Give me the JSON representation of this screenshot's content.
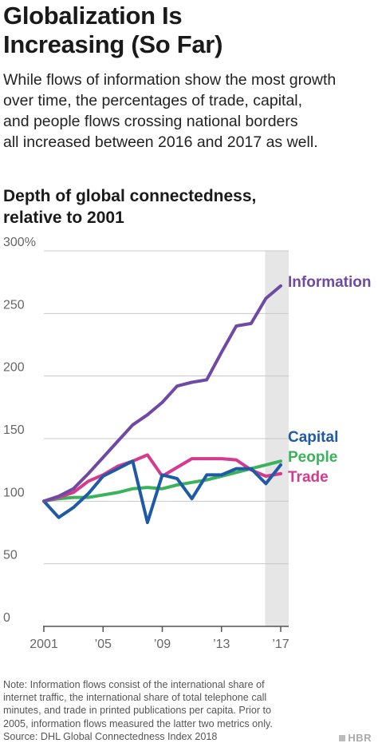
{
  "title_lines": [
    "Globalization Is",
    "Increasing (So Far)"
  ],
  "subtitle_lines": [
    "While flows of information show the most growth",
    "over time, the percentages of trade, capital,",
    "and people flows crossing national borders",
    "all increased between 2016 and 2017 as well."
  ],
  "chart_title_lines": [
    "Depth of global connectedness,",
    "relative to 2001"
  ],
  "note_lines": [
    "Note: Information flows consist of the international share of",
    "internet traffic, the international share of total telephone call",
    "minutes, and trade in printed publications per capita. Prior to",
    "2005, information flows measured the latter two metrics only.",
    "Source: DHL Global Connectedness Index 2018"
  ],
  "brand": "HBR",
  "colors": {
    "Information": "#6f4aa5",
    "Capital": "#1f5aa6",
    "People": "#3ab35a",
    "Trade": "#d63a8c",
    "highlight": "#e6e6e6",
    "grid": "#c8c8c8",
    "axis": "#555555"
  },
  "chart_data": {
    "type": "line",
    "x": [
      2001,
      2002,
      2003,
      2004,
      2005,
      2006,
      2007,
      2008,
      2009,
      2010,
      2011,
      2012,
      2013,
      2014,
      2015,
      2016,
      2017
    ],
    "x_tick_values": [
      2001,
      2005,
      2009,
      2013,
      2017
    ],
    "x_tick_labels": [
      "2001",
      "’05",
      "’09",
      "’13",
      "’17"
    ],
    "y_tick_values": [
      0,
      50,
      100,
      150,
      200,
      250,
      300
    ],
    "y_tick_labels": [
      "0",
      "50",
      "100",
      "150",
      "200",
      "250",
      "300%"
    ],
    "ylim": [
      0,
      300
    ],
    "xlim": [
      2001,
      2017
    ],
    "highlight_range": [
      2016,
      2017
    ],
    "series": [
      {
        "name": "Information",
        "values": [
          100,
          104,
          110,
          122,
          135,
          148,
          161,
          169,
          179,
          192,
          195,
          197,
          219,
          240,
          242,
          262,
          272
        ]
      },
      {
        "name": "Capital",
        "values": [
          100,
          87,
          95,
          106,
          120,
          126,
          132,
          83,
          121,
          118,
          102,
          121,
          121,
          126,
          126,
          114,
          129
        ]
      },
      {
        "name": "People",
        "values": [
          100,
          102,
          103,
          103,
          105,
          107,
          110,
          111,
          110,
          113,
          115,
          117,
          120,
          123,
          126,
          129,
          132
        ]
      },
      {
        "name": "Trade",
        "values": [
          100,
          103,
          107,
          116,
          121,
          128,
          132,
          137,
          120,
          127,
          134,
          134,
          134,
          133,
          125,
          120,
          122
        ]
      }
    ]
  }
}
